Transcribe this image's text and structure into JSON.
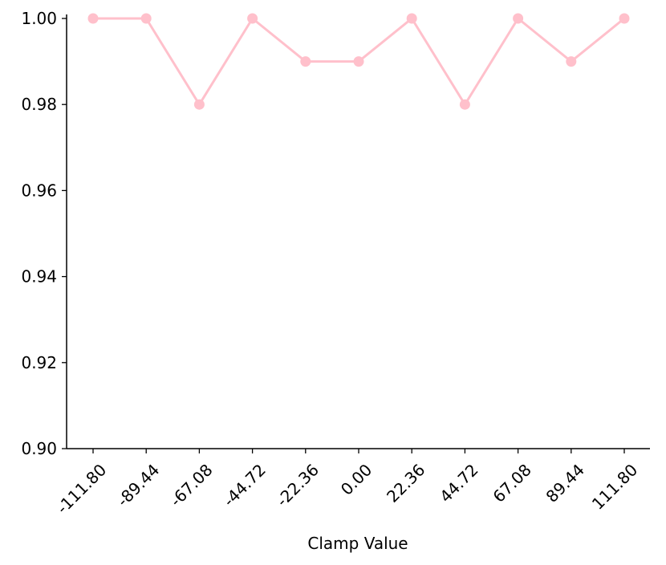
{
  "chart_data": {
    "type": "line",
    "title": "",
    "xlabel": "Clamp Value",
    "ylabel": "",
    "x": [
      "-111.80",
      "-89.44",
      "-67.08",
      "-44.72",
      "-22.36",
      "0.00",
      "22.36",
      "44.72",
      "67.08",
      "89.44",
      "111.80"
    ],
    "series": [
      {
        "values": [
          1.0,
          1.0,
          0.98,
          1.0,
          0.99,
          0.99,
          1.0,
          0.98,
          1.0,
          0.99,
          1.0
        ]
      }
    ],
    "ylim": [
      0.9,
      1.0
    ],
    "yticks": [
      "0.90",
      "0.92",
      "0.94",
      "0.96",
      "0.98",
      "1.00"
    ],
    "grid": false,
    "line_color": "#ffc0cb"
  }
}
